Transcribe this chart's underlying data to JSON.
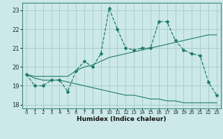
{
  "xlabel": "Humidex (Indice chaleur)",
  "x_values": [
    0,
    1,
    2,
    3,
    4,
    5,
    6,
    7,
    8,
    9,
    10,
    11,
    12,
    13,
    14,
    15,
    16,
    17,
    18,
    19,
    20,
    21,
    22,
    23
  ],
  "line1_y": [
    19.6,
    19.0,
    19.0,
    19.3,
    19.3,
    18.7,
    19.8,
    20.3,
    20.0,
    20.7,
    23.1,
    22.0,
    21.0,
    20.9,
    21.0,
    21.0,
    22.4,
    22.4,
    21.4,
    20.9,
    20.7,
    20.6,
    19.2,
    18.5
  ],
  "line2_y": [
    19.6,
    19.5,
    19.5,
    19.5,
    19.5,
    19.5,
    19.8,
    20.0,
    20.1,
    20.3,
    20.5,
    20.6,
    20.7,
    20.8,
    20.9,
    21.0,
    21.1,
    21.2,
    21.3,
    21.4,
    21.5,
    21.6,
    21.7,
    21.7
  ],
  "line3_y": [
    19.6,
    19.4,
    19.3,
    19.3,
    19.3,
    19.2,
    19.1,
    19.0,
    18.9,
    18.8,
    18.7,
    18.6,
    18.5,
    18.5,
    18.4,
    18.3,
    18.3,
    18.2,
    18.2,
    18.1,
    18.1,
    18.1,
    18.1,
    18.1
  ],
  "line_color": "#1e7b6a",
  "bg_color": "#cce8e8",
  "grid_color": "#aacece",
  "ylim": [
    17.8,
    23.4
  ],
  "yticks": [
    18,
    19,
    20,
    21,
    22,
    23
  ],
  "xlim": [
    -0.5,
    23.5
  ],
  "ylabel_fontsize": 6,
  "xlabel_fontsize": 6.5
}
